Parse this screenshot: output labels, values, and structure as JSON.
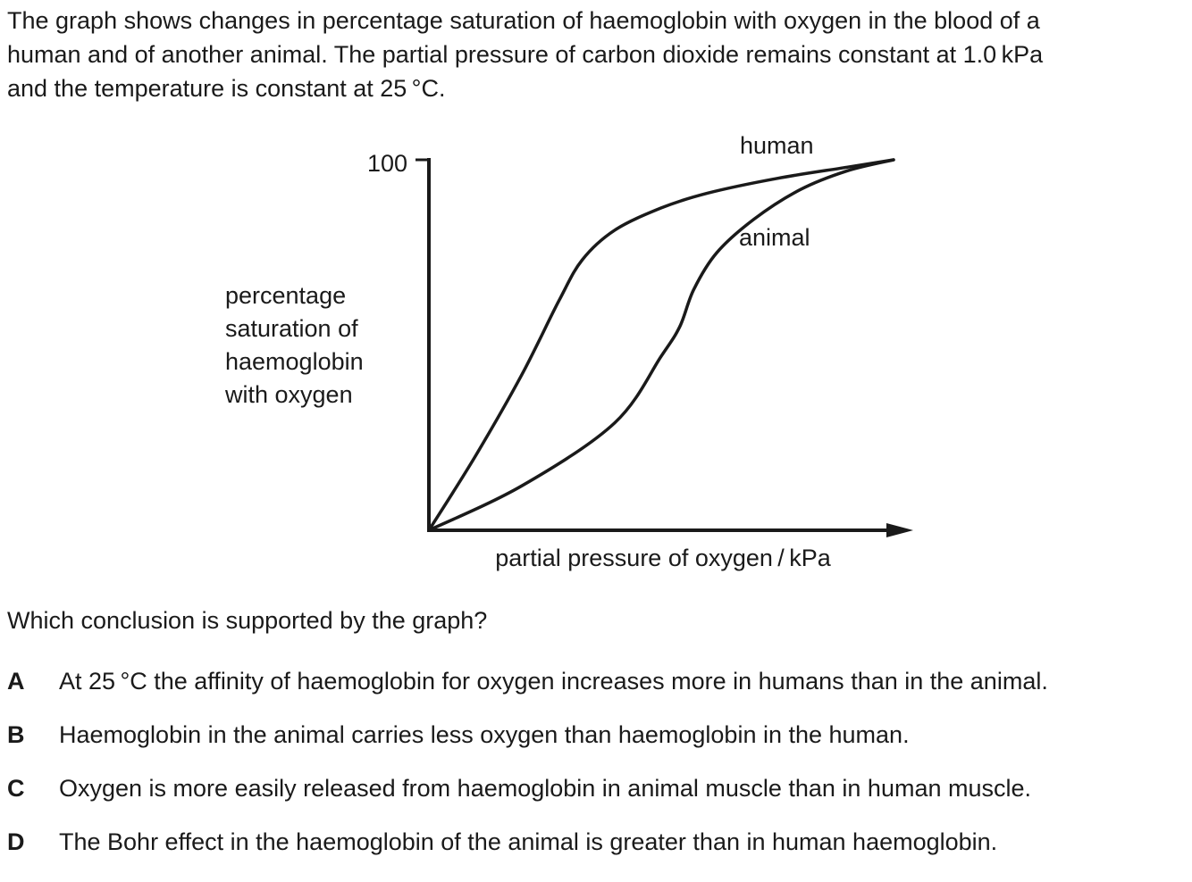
{
  "intro": {
    "line1": "The graph shows changes in percentage saturation of haemoglobin with oxygen in the blood of a",
    "line2": "human and of another animal. The partial pressure of carbon dioxide remains constant at 1.0 kPa",
    "line3": "and the temperature is constant at 25 °C."
  },
  "chart_data": {
    "type": "line",
    "title": "",
    "xlabel": "partial pressure of oxygen / kPa",
    "ylabel_lines": [
      "percentage",
      "saturation of",
      "haemoglobin",
      "with oxygen"
    ],
    "ytick_label": "100",
    "ylim": [
      0,
      100
    ],
    "xlim": [
      0,
      100
    ],
    "grid": false,
    "series": [
      {
        "name": "human",
        "x": [
          0,
          10,
          20,
          28,
          33,
          40,
          50,
          60,
          75,
          90,
          100
        ],
        "y": [
          0,
          20,
          42,
          62,
          73,
          81,
          87,
          91,
          95,
          98,
          100
        ]
      },
      {
        "name": "animal",
        "x": [
          0,
          20,
          40,
          50,
          54,
          57,
          62,
          70,
          80,
          90,
          100
        ],
        "y": [
          0,
          12,
          29,
          47,
          55,
          65,
          75,
          84,
          92,
          97,
          100
        ]
      }
    ]
  },
  "question": "Which conclusion is supported by the graph?",
  "options": [
    {
      "letter": "A",
      "text": "At 25 °C the affinity of haemoglobin for oxygen increases more in humans than in the animal."
    },
    {
      "letter": "B",
      "text": "Haemoglobin in the animal carries less oxygen than haemoglobin in the human."
    },
    {
      "letter": "C",
      "text": "Oxygen is more easily released from haemoglobin in animal muscle than in human muscle."
    },
    {
      "letter": "D",
      "text": "The Bohr effect in the haemoglobin of the animal is greater than in human haemoglobin."
    }
  ]
}
